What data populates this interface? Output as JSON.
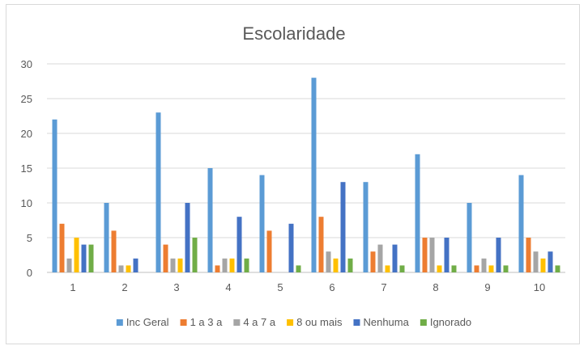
{
  "chart_data": {
    "type": "bar",
    "title": "Escolaridade",
    "xlabel": "",
    "ylabel": "",
    "ylim": [
      0,
      30
    ],
    "yticks": [
      0,
      5,
      10,
      15,
      20,
      25,
      30
    ],
    "categories": [
      "1",
      "2",
      "3",
      "4",
      "5",
      "6",
      "7",
      "8",
      "9",
      "10"
    ],
    "legend_position": "bottom",
    "grid": true,
    "series": [
      {
        "name": "Inc Geral",
        "color": "#5B9BD5",
        "values": [
          22,
          10,
          23,
          15,
          14,
          28,
          13,
          17,
          10,
          14
        ]
      },
      {
        "name": "1 a 3 a",
        "color": "#ED7D31",
        "values": [
          7,
          6,
          4,
          1,
          6,
          8,
          3,
          5,
          1,
          5
        ]
      },
      {
        "name": "4 a 7 a",
        "color": "#A5A5A5",
        "values": [
          2,
          1,
          2,
          2,
          0,
          3,
          4,
          5,
          2,
          3
        ]
      },
      {
        "name": "8 ou mais",
        "color": "#FFC000",
        "values": [
          5,
          1,
          2,
          2,
          0,
          2,
          1,
          1,
          1,
          2
        ]
      },
      {
        "name": "Nenhuma",
        "color": "#4472C4",
        "values": [
          4,
          2,
          10,
          8,
          7,
          13,
          4,
          5,
          5,
          3
        ]
      },
      {
        "name": "Ignorado",
        "color": "#70AD47",
        "values": [
          4,
          0,
          5,
          2,
          1,
          2,
          1,
          1,
          1,
          1
        ]
      }
    ]
  }
}
